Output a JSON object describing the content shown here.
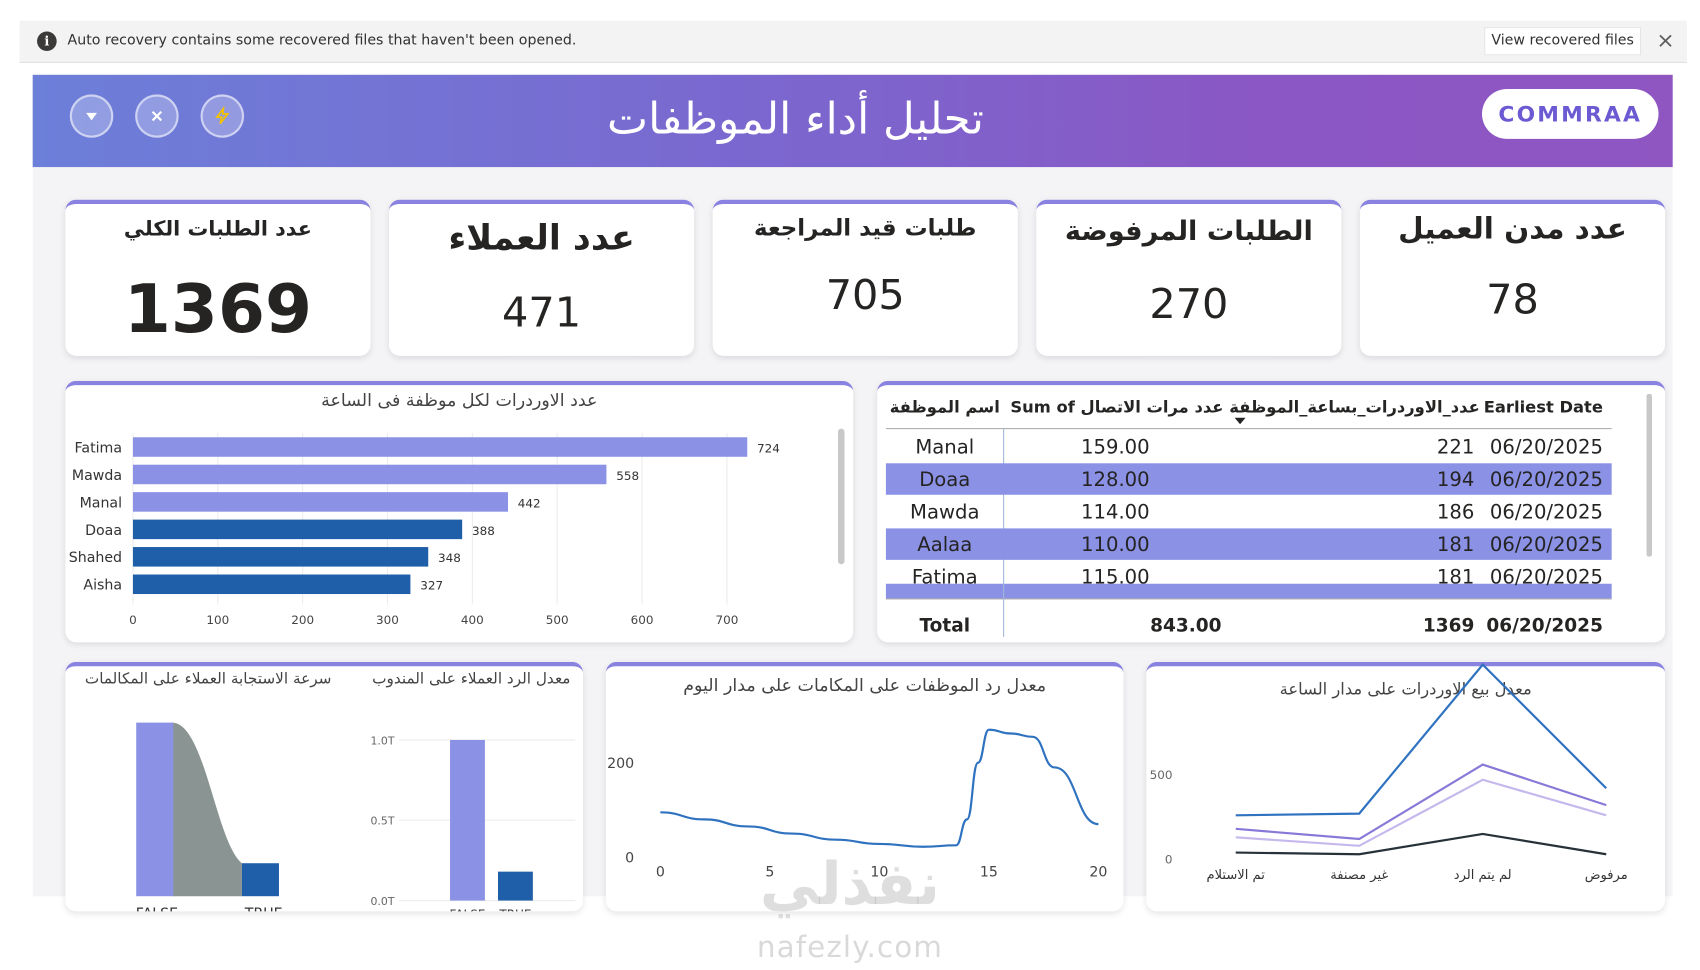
{
  "notification": {
    "message": "Auto recovery contains some recovered files that haven't been opened.",
    "button": "View recovered files"
  },
  "header": {
    "title": "تحليل أداء الموظفات",
    "logo": "COMMRAA"
  },
  "kpis": [
    {
      "label": "عدد الطلبات الكلي",
      "value": "1369"
    },
    {
      "label": "عدد العملاء",
      "value": "471"
    },
    {
      "label": "طلبات قيد المراجعة",
      "value": "705"
    },
    {
      "label": "الطلبات المرفوضة",
      "value": "270"
    },
    {
      "label": "عدد مدن العميل",
      "value": "78"
    }
  ],
  "colors": {
    "accent": "#8a82e0",
    "bar_light": "#8b92e6",
    "bar_dark": "#1f5ea8",
    "line": "#2f72c0",
    "header_start": "#6c7fd9",
    "header_end": "#8f56c2"
  },
  "table": {
    "headers": [
      "اسم الموظفة",
      "Sum of عدد مرات الاتصال",
      "عدد_الاوردرات_بساعة_الموظفة",
      "Earliest Date"
    ],
    "rows": [
      [
        "Manal",
        "159.00",
        "221",
        "06/20/2025"
      ],
      [
        "Doaa",
        "128.00",
        "194",
        "06/20/2025"
      ],
      [
        "Mawda",
        "114.00",
        "186",
        "06/20/2025"
      ],
      [
        "Aalaa",
        "110.00",
        "181",
        "06/20/2025"
      ],
      [
        "Fatima",
        "115.00",
        "181",
        "06/20/2025"
      ]
    ],
    "total": [
      "Total",
      "843.00",
      "1369",
      "06/20/2025"
    ]
  },
  "chart_data": [
    {
      "id": "orders-per-employee",
      "type": "bar",
      "orientation": "horizontal",
      "title": "عدد الاوردرات لكل موظفة فى الساعة",
      "categories": [
        "Fatima",
        "Mawda",
        "Manal",
        "Doaa",
        "Shahed",
        "Aisha"
      ],
      "values": [
        724,
        558,
        442,
        388,
        348,
        327
      ],
      "xlim": [
        0,
        750
      ],
      "x_ticks": [
        "0",
        "100",
        "200",
        "300",
        "400",
        "500",
        "600",
        "700"
      ],
      "data_labels": [
        "724",
        "558",
        "442",
        "388",
        "348",
        "327"
      ]
    },
    {
      "id": "response-speed",
      "type": "bar",
      "title": "سرعة الاستجابة العملاء على المكالمات",
      "categories": [
        "FALSE",
        "TRUE"
      ],
      "values": [
        1.0,
        0.19
      ]
    },
    {
      "id": "rep-response-rate",
      "type": "bar",
      "title": "معدل الرد العملاء على المندوب",
      "categories": [
        "FALSE",
        "TRUE"
      ],
      "values": [
        1.0,
        0.18
      ],
      "ylim": [
        0,
        1.0
      ],
      "y_ticks": [
        "1.0T",
        "0.5T",
        "0.0T"
      ]
    },
    {
      "id": "calls-by-hour",
      "type": "line",
      "title": "معدل رد الموظفات على المكامات على مدار اليوم",
      "x": [
        0,
        2,
        4,
        6,
        8,
        10,
        12,
        13.5,
        14,
        14.5,
        15,
        16,
        17,
        18,
        20
      ],
      "values": [
        95,
        80,
        65,
        50,
        37,
        28,
        22,
        25,
        80,
        200,
        270,
        262,
        255,
        190,
        70
      ],
      "xlim": [
        0,
        20
      ],
      "ylim": [
        0,
        290
      ],
      "x_ticks": [
        "0",
        "5",
        "10",
        "15",
        "20"
      ],
      "y_ticks": [
        "200",
        "0"
      ]
    },
    {
      "id": "sales-by-hour",
      "type": "line",
      "title": "معدل بيع الاوردرات على مدار الساعة",
      "categories": [
        "تم الاستلام",
        "غير مصنفة",
        "لم يتم الرد",
        "مرفوض"
      ],
      "series": [
        {
          "values": [
            260,
            270,
            1150,
            420
          ],
          "color": "#2f72c0"
        },
        {
          "values": [
            180,
            120,
            560,
            320
          ],
          "color": "#8878d8"
        },
        {
          "values": [
            130,
            80,
            470,
            260
          ],
          "color": "#c4b8ec"
        },
        {
          "values": [
            40,
            30,
            150,
            30
          ],
          "color": "#263238"
        }
      ],
      "ylim": [
        0,
        1300
      ],
      "y_ticks": [
        "500",
        "0"
      ]
    }
  ],
  "watermark": {
    "brand": "نفذلي",
    "url": "nafezly.com"
  }
}
